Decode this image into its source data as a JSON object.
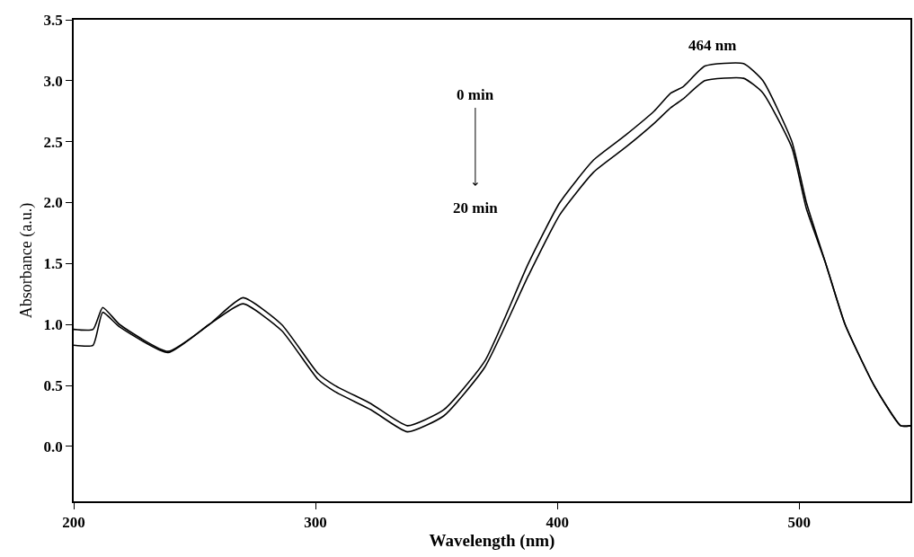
{
  "chart_data": {
    "type": "line",
    "xlabel": "Wavelength (nm)",
    "ylabel": "Absorbance (a.u.)",
    "xlim": [
      200,
      546
    ],
    "xticks": [
      200,
      300,
      400,
      500
    ],
    "ylim": [
      -0.45,
      3.5
    ],
    "yticks": [
      {
        "value": 0,
        "label": "0.0"
      },
      0.5,
      {
        "value": 1,
        "label": "1.0"
      },
      1.5,
      {
        "value": 2,
        "label": "2.0"
      },
      2.5,
      {
        "value": 3,
        "label": "3.0"
      },
      3.5
    ],
    "marker": "none",
    "line_style": "solid",
    "x": [
      200,
      208,
      212,
      219,
      239,
      256,
      270,
      286,
      301,
      308,
      323,
      338,
      353,
      370,
      388,
      401,
      415,
      428,
      440,
      447,
      452,
      461,
      477,
      485,
      497,
      503,
      511,
      519,
      531,
      542,
      546
    ],
    "series": [
      {
        "color": "#000000",
        "values": [
          0.96,
          0.96,
          1.14,
          1.0,
          0.78,
          1.0,
          1.22,
          1.0,
          0.6,
          0.5,
          0.35,
          0.17,
          0.3,
          0.7,
          1.5,
          2.0,
          2.35,
          2.55,
          2.75,
          2.9,
          2.95,
          3.12,
          3.14,
          3.0,
          2.5,
          2.0,
          1.5,
          1.0,
          0.5,
          0.17,
          0.17
        ]
      },
      {
        "color": "#000000",
        "values": [
          0.83,
          0.83,
          1.1,
          0.98,
          0.77,
          1.0,
          1.17,
          0.95,
          0.55,
          0.45,
          0.3,
          0.12,
          0.25,
          0.65,
          1.4,
          1.9,
          2.25,
          2.45,
          2.65,
          2.78,
          2.85,
          3.0,
          3.02,
          2.9,
          2.45,
          1.95,
          1.5,
          1.0,
          0.5,
          0.17,
          0.17
        ]
      }
    ],
    "annotations": [
      {
        "text": "464 nm",
        "x": 464,
        "y": 3.13
      },
      "0 min",
      "20 min"
    ]
  }
}
